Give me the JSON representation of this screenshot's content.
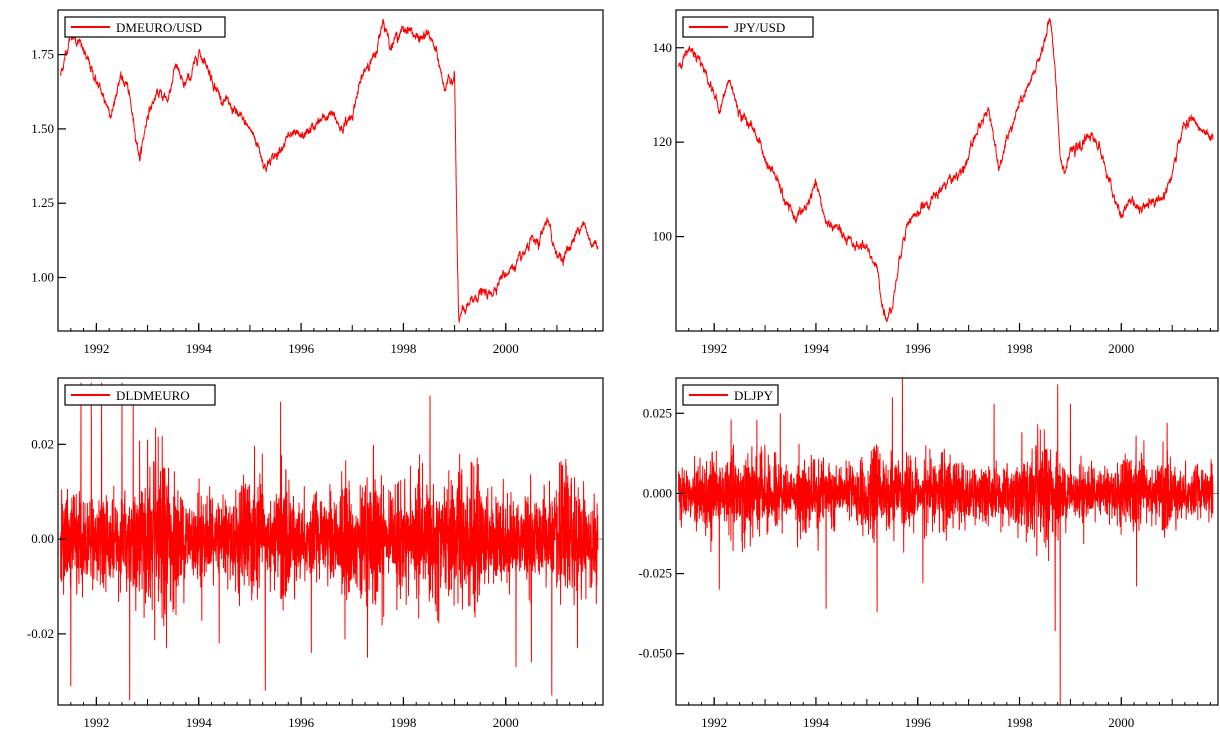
{
  "chart_data": [
    {
      "type": "line",
      "title": "",
      "legend": "top-left",
      "series": [
        {
          "name": "DMEURO/USD"
        }
      ],
      "xlim": [
        1991.25,
        2001.9
      ],
      "ylim": [
        0.82,
        1.9
      ],
      "x_ticks": [
        1992,
        1994,
        1996,
        1998,
        2000
      ],
      "y_ticks": [
        1.0,
        1.25,
        1.5,
        1.75
      ],
      "y_tick_labels": [
        "1.00",
        "1.25",
        "1.50",
        "1.75"
      ],
      "color": "#ff0000",
      "x": [
        1991.3,
        1991.5,
        1991.7,
        1991.85,
        1992.0,
        1992.15,
        1992.3,
        1992.45,
        1992.6,
        1992.75,
        1992.85,
        1993.0,
        1993.2,
        1993.4,
        1993.55,
        1993.7,
        1993.85,
        1994.0,
        1994.15,
        1994.3,
        1994.45,
        1994.6,
        1994.75,
        1994.9,
        1995.0,
        1995.15,
        1995.3,
        1995.45,
        1995.6,
        1995.8,
        1996.0,
        1996.2,
        1996.4,
        1996.6,
        1996.8,
        1997.0,
        1997.15,
        1997.3,
        1997.45,
        1997.6,
        1997.75,
        1997.9,
        1998.1,
        1998.3,
        1998.5,
        1998.65,
        1998.8,
        1999.0,
        1999.05,
        1999.08,
        1999.15,
        1999.3,
        1999.5,
        1999.7,
        1999.9,
        2000.1,
        2000.3,
        2000.5,
        2000.65,
        2000.8,
        2000.95,
        2001.1,
        2001.3,
        2001.5,
        2001.65,
        2001.8
      ],
      "y": [
        1.68,
        1.82,
        1.78,
        1.72,
        1.66,
        1.6,
        1.55,
        1.67,
        1.65,
        1.5,
        1.4,
        1.55,
        1.62,
        1.6,
        1.72,
        1.64,
        1.68,
        1.76,
        1.72,
        1.65,
        1.6,
        1.58,
        1.55,
        1.52,
        1.5,
        1.45,
        1.37,
        1.4,
        1.44,
        1.48,
        1.47,
        1.5,
        1.53,
        1.55,
        1.5,
        1.55,
        1.65,
        1.72,
        1.74,
        1.87,
        1.78,
        1.82,
        1.84,
        1.8,
        1.82,
        1.75,
        1.64,
        1.68,
        1.1,
        0.85,
        0.88,
        0.91,
        0.95,
        0.94,
        1.0,
        1.03,
        1.06,
        1.12,
        1.11,
        1.2,
        1.1,
        1.06,
        1.12,
        1.19,
        1.12,
        1.11
      ],
      "n_points": 3500
    },
    {
      "type": "line",
      "title": "",
      "legend": "top-left",
      "series": [
        {
          "name": "JPY/USD"
        }
      ],
      "xlim": [
        1991.25,
        2001.9
      ],
      "ylim": [
        80,
        148
      ],
      "x_ticks": [
        1992,
        1994,
        1996,
        1998,
        2000
      ],
      "y_ticks": [
        100,
        120,
        140
      ],
      "y_tick_labels": [
        "100",
        "120",
        "140"
      ],
      "color": "#ff0000",
      "x": [
        1991.3,
        1991.5,
        1991.7,
        1991.9,
        1992.1,
        1992.3,
        1992.5,
        1992.7,
        1992.9,
        1993.0,
        1993.2,
        1993.4,
        1993.6,
        1993.8,
        1994.0,
        1994.2,
        1994.4,
        1994.6,
        1994.8,
        1995.0,
        1995.2,
        1995.3,
        1995.4,
        1995.5,
        1995.6,
        1995.7,
        1995.8,
        1996.0,
        1996.2,
        1996.4,
        1996.6,
        1996.8,
        1997.0,
        1997.2,
        1997.4,
        1997.6,
        1997.8,
        1998.0,
        1998.2,
        1998.4,
        1998.6,
        1998.7,
        1998.8,
        1998.9,
        1999.0,
        1999.2,
        1999.4,
        1999.6,
        1999.8,
        2000.0,
        2000.2,
        2000.4,
        2000.6,
        2000.8,
        2001.0,
        2001.2,
        2001.4,
        2001.6,
        2001.8
      ],
      "y": [
        136,
        140,
        138,
        133,
        127,
        133,
        126,
        124,
        120,
        116,
        113,
        107,
        104,
        106,
        111,
        103,
        102,
        99,
        98,
        98,
        93,
        86,
        82,
        86,
        92,
        99,
        103,
        105,
        107,
        109,
        112,
        113,
        117,
        123,
        127,
        115,
        122,
        128,
        132,
        138,
        146,
        136,
        117,
        114,
        118,
        119,
        122,
        118,
        110,
        104,
        108,
        105,
        108,
        108,
        113,
        123,
        125,
        122,
        120
      ],
      "n_points": 3500
    },
    {
      "type": "line",
      "title": "",
      "legend": "top-left",
      "series": [
        {
          "name": "DLDMEURO"
        }
      ],
      "xlim": [
        1991.25,
        2001.9
      ],
      "ylim": [
        -0.035,
        0.034
      ],
      "x_ticks": [
        1992,
        1994,
        1996,
        1998,
        2000
      ],
      "y_ticks": [
        -0.02,
        0.0,
        0.02
      ],
      "y_tick_labels": [
        "-0.02",
        "0.00",
        "0.02"
      ],
      "zero_line": true,
      "color": "#ff0000",
      "typical_amplitude": 0.012,
      "spikes_x": [
        1991.5,
        1991.7,
        1991.9,
        1992.1,
        1992.5,
        1992.65,
        1992.72,
        1993.0,
        1994.4,
        1995.3,
        1995.6,
        1996.2,
        1997.3,
        1999.1,
        2000.2,
        2000.5,
        2000.9,
        2001.4
      ],
      "spikes_y": [
        -0.031,
        0.033,
        0.033,
        0.033,
        0.033,
        -0.034,
        0.03,
        0.021,
        -0.022,
        -0.032,
        0.029,
        -0.024,
        -0.025,
        0.018,
        -0.027,
        -0.026,
        -0.033,
        -0.023
      ],
      "n_points": 3500
    },
    {
      "type": "line",
      "title": "",
      "legend": "top-left",
      "series": [
        {
          "name": "DLJPY"
        }
      ],
      "xlim": [
        1991.25,
        2001.9
      ],
      "ylim": [
        -0.066,
        0.036
      ],
      "x_ticks": [
        1992,
        1994,
        1996,
        1998,
        2000
      ],
      "y_ticks": [
        -0.05,
        -0.025,
        0.0,
        0.025
      ],
      "y_tick_labels": [
        "-0.050",
        "-0.025",
        "0.000",
        "0.025"
      ],
      "zero_line": true,
      "color": "#ff0000",
      "typical_amplitude": 0.011,
      "spikes_x": [
        1992.1,
        1993.3,
        1994.2,
        1995.2,
        1995.5,
        1995.7,
        1996.1,
        1997.5,
        1998.7,
        1998.75,
        1998.8,
        1999.0,
        2000.3,
        2000.9
      ],
      "spikes_y": [
        -0.03,
        0.025,
        -0.036,
        -0.037,
        0.03,
        0.036,
        -0.028,
        0.028,
        -0.043,
        0.034,
        -0.066,
        0.028,
        -0.029,
        0.022
      ],
      "n_points": 3500
    }
  ]
}
